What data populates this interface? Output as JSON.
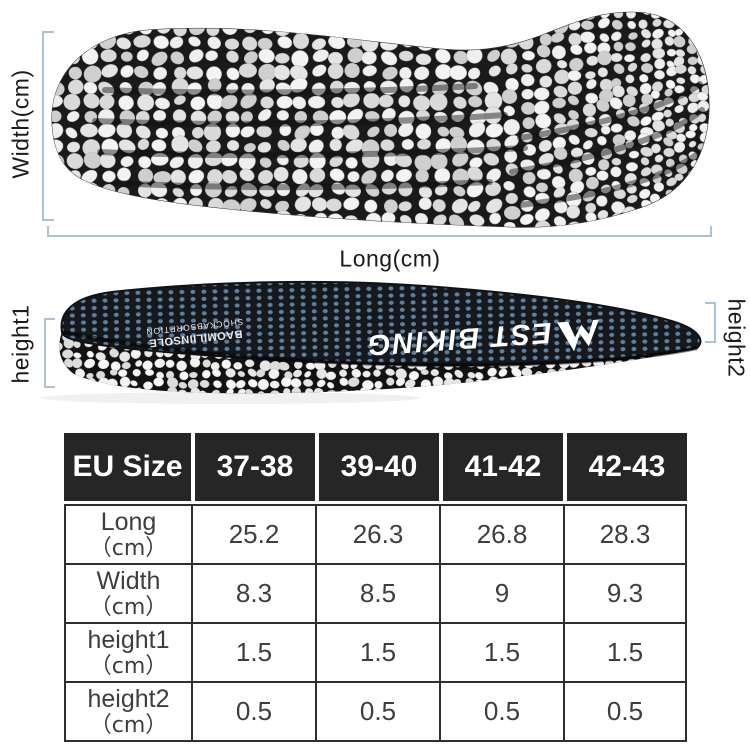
{
  "dimension_labels": {
    "width": "Width(cm)",
    "long": "Long(cm)",
    "height1": "height1",
    "height2": "height2"
  },
  "insole_branding": {
    "brand": "WEST BIKING",
    "brand_text_after_logo": "EST BIKING",
    "sub_line1": "BAOMILIINSOLE",
    "sub_line2": "SHOCKABSORPTION"
  },
  "size_table": {
    "header": [
      "EU Size",
      "37-38",
      "39-40",
      "41-42",
      "42-43"
    ],
    "rows": [
      {
        "label": "Long",
        "unit": "（cm）",
        "values": [
          "25.2",
          "26.3",
          "26.8",
          "28.3"
        ]
      },
      {
        "label": "Width",
        "unit": "（cm）",
        "values": [
          "8.3",
          "8.5",
          "9",
          "9.3"
        ]
      },
      {
        "label": "height1",
        "unit": "（cm）",
        "values": [
          "1.5",
          "1.5",
          "1.5",
          "1.5"
        ]
      },
      {
        "label": "height2",
        "unit": "（cm）",
        "values": [
          "0.5",
          "0.5",
          "0.5",
          "0.5"
        ]
      }
    ]
  },
  "colors": {
    "bracket": "#a9c2d6",
    "header_bg": "#262626",
    "header_text": "#ffffff",
    "body_text": "#3e3e3e",
    "blue_dot": "#5b82a4",
    "sole_base": "#1a1a1a"
  }
}
